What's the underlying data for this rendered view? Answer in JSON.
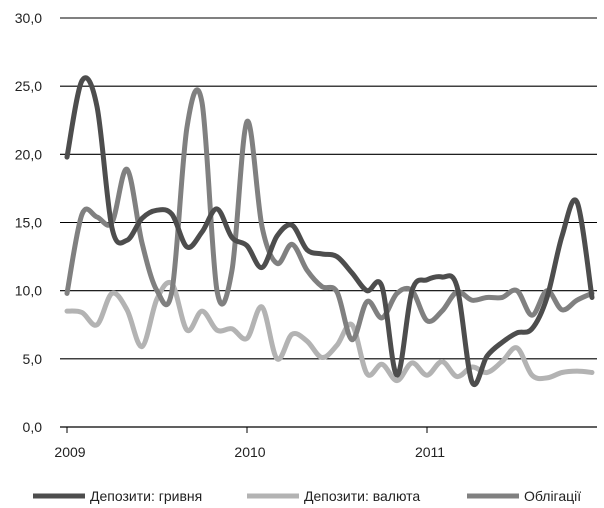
{
  "chart_data": {
    "type": "line",
    "title": "",
    "xlabel": "",
    "ylabel": "",
    "ylim": [
      0,
      30
    ],
    "y_ticks": [
      "0,0",
      "5,0",
      "10,0",
      "15,0",
      "20,0",
      "25,0",
      "30,0"
    ],
    "x_ticks": [
      "2009",
      "2010",
      "2011"
    ],
    "x_tick_positions": [
      0,
      12,
      24
    ],
    "grid": "horizontal",
    "legend_position": "bottom",
    "x": [
      0,
      1,
      2,
      3,
      4,
      5,
      6,
      7,
      8,
      9,
      10,
      11,
      12,
      13,
      14,
      15,
      16,
      17,
      18,
      19,
      20,
      21,
      22,
      23,
      24,
      25,
      26,
      27,
      28,
      29,
      30,
      31,
      32,
      33,
      34,
      35
    ],
    "series": [
      {
        "name": "Депозити: гривня",
        "color": "#4d4d4d",
        "values": [
          19.8,
          25.4,
          23.5,
          14.6,
          13.7,
          15.3,
          15.9,
          15.6,
          13.2,
          14.3,
          16.0,
          13.9,
          13.3,
          11.7,
          14.0,
          14.8,
          13.0,
          12.7,
          12.5,
          11.3,
          10.0,
          10.3,
          3.8,
          10.0,
          10.8,
          11.0,
          10.3,
          3.3,
          5.2,
          6.2,
          6.9,
          7.2,
          9.5,
          14.0,
          16.5,
          9.5
        ]
      },
      {
        "name": "Депозити: валюта",
        "color": "#b3b3b3",
        "values": [
          8.5,
          8.4,
          7.5,
          9.8,
          8.6,
          5.9,
          9.4,
          10.5,
          7.1,
          8.5,
          7.1,
          7.2,
          6.5,
          8.8,
          5.0,
          6.8,
          6.3,
          5.1,
          6.0,
          7.5,
          3.9,
          4.6,
          3.4,
          4.7,
          3.8,
          4.8,
          3.7,
          4.4,
          4.0,
          4.8,
          5.8,
          3.8,
          3.6,
          4.0,
          4.1,
          4.0
        ]
      },
      {
        "name": "Облігації",
        "color": "#808080",
        "values": [
          9.8,
          15.6,
          15.4,
          15.0,
          18.9,
          13.5,
          10.0,
          10.0,
          22.0,
          23.8,
          10.0,
          11.5,
          22.4,
          14.7,
          12.0,
          13.4,
          11.5,
          10.3,
          9.9,
          6.4,
          9.2,
          8.0,
          9.8,
          10.0,
          7.8,
          8.5,
          9.9,
          9.3,
          9.5,
          9.5,
          10.0,
          8.2,
          10.0,
          8.6,
          9.3,
          9.8
        ]
      }
    ]
  }
}
